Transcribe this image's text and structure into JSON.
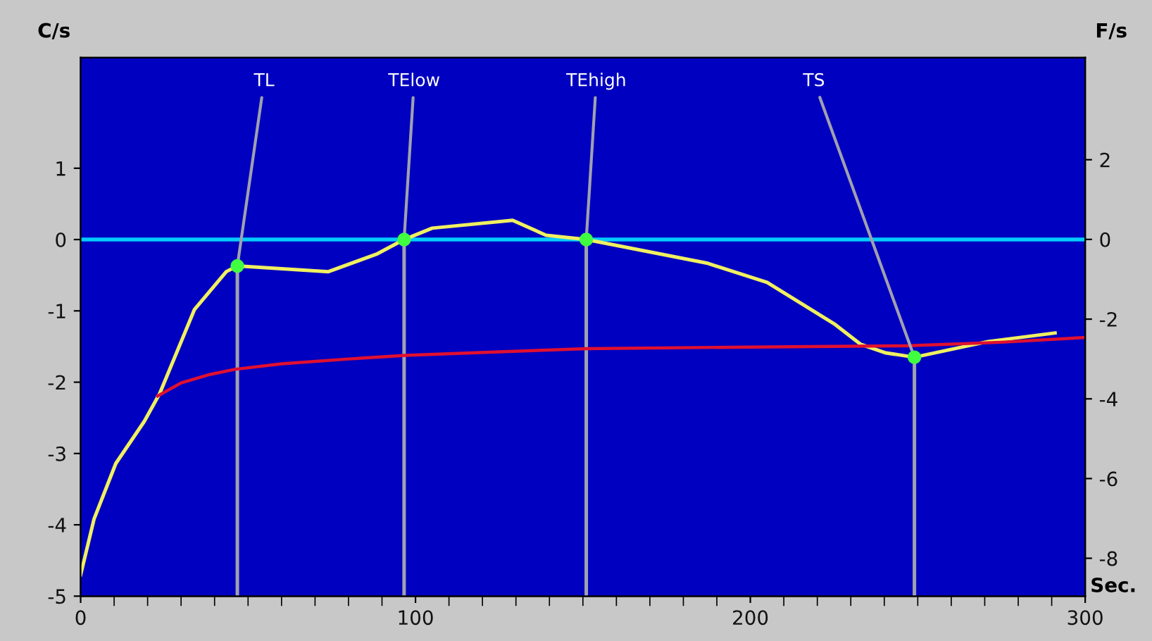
{
  "chart_data": {
    "type": "line",
    "xlabel": "Sec.",
    "ylabel": "C/s",
    "y2label": "F/s",
    "xlim": [
      0,
      300
    ],
    "xticks": [
      0,
      100,
      200,
      300
    ],
    "ylim": [
      -5,
      2.55
    ],
    "yticks": [
      -5,
      -4,
      -3,
      -2,
      -1,
      0,
      1
    ],
    "y2lim": [
      -8.95,
      4.56
    ],
    "y2ticks": [
      -8,
      -6,
      -4,
      -2,
      0,
      2
    ],
    "grid": false,
    "marker": "none",
    "line_style": "solid",
    "ref_lines": [
      {
        "axis": "y",
        "value": 0,
        "color": "#00ccff"
      }
    ],
    "series": [
      {
        "color": "#f0f060",
        "x": [
          0,
          4,
          10.5,
          19,
          23.6,
          34,
          43.5,
          46.8,
          74,
          88.6,
          96.6,
          105,
          129,
          139,
          151,
          187,
          205,
          225,
          233,
          240.5,
          249,
          271,
          291
        ],
        "values": [
          -4.7,
          -3.92,
          -3.14,
          -2.55,
          -2.16,
          -0.98,
          -0.45,
          -0.37,
          -0.45,
          -0.2,
          0,
          0.16,
          0.27,
          0.06,
          0,
          -0.33,
          -0.6,
          -1.18,
          -1.47,
          -1.59,
          -1.65,
          -1.43,
          -1.31
        ]
      },
      {
        "color": "#a0a0b0",
        "x": [
          46.8,
          46.8
        ],
        "values": [
          -5,
          -0.37
        ]
      },
      {
        "color": "#a0a0b0",
        "x": [
          96.6,
          96.6
        ],
        "values": [
          -5,
          0
        ]
      },
      {
        "color": "#a0a0b0",
        "x": [
          151,
          151
        ],
        "values": [
          -5,
          0
        ]
      },
      {
        "color": "#a0a0b0",
        "x": [
          249,
          249
        ],
        "values": [
          -5,
          -1.65
        ]
      },
      {
        "color": "#e01030",
        "axis": "y2",
        "x": [
          23,
          30,
          38,
          46,
          60,
          80,
          97,
          125,
          151,
          200,
          246,
          275,
          300
        ],
        "values": [
          -3.93,
          -3.6,
          -3.4,
          -3.26,
          -3.12,
          -3.0,
          -2.91,
          -2.82,
          -2.74,
          -2.7,
          -2.67,
          -2.58,
          -2.46
        ]
      }
    ],
    "annotations": [
      {
        "text": "TL",
        "x": 46.8,
        "y": -0.37
      },
      {
        "text": "TElow",
        "x": 96.6,
        "y": 0
      },
      {
        "text": "TEhigh",
        "x": 151,
        "y": 0
      },
      {
        "text": "TS",
        "x": 249,
        "y": -1.65
      }
    ]
  }
}
